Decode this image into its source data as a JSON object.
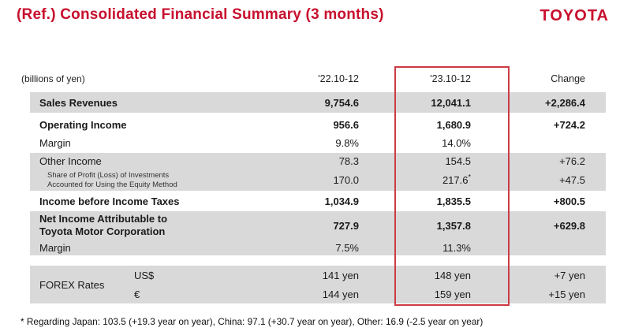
{
  "header": {
    "title": "(Ref.) Consolidated Financial Summary (3 months)",
    "logo": "TOYOTA"
  },
  "table": {
    "unit_label": "(billions of yen)",
    "columns": [
      "'22.10-12",
      "'23.10-12",
      "Change"
    ],
    "rows": [
      {
        "label": "Sales Revenues",
        "v1": "9,754.6",
        "v2": "12,041.1",
        "change": "+2,286.4"
      },
      {
        "label": "Operating Income",
        "v1": "956.6",
        "v2": "1,680.9",
        "change": "+724.2"
      },
      {
        "label": "Margin",
        "v1": "9.8%",
        "v2": "14.0%",
        "change": ""
      },
      {
        "label": "Other Income",
        "v1": "78.3",
        "v2": "154.5",
        "change": "+76.2"
      },
      {
        "label_line1": "Share of Profit (Loss) of Investments",
        "label_line2": "Accounted for Using the Equity Method",
        "v1": "170.0",
        "v2": "217.6",
        "v2_note": "*",
        "change": "+47.5"
      },
      {
        "label": "Income before Income Taxes",
        "v1": "1,034.9",
        "v2": "1,835.5",
        "change": "+800.5"
      },
      {
        "label_line1": "Net Income Attributable to",
        "label_line2": "Toyota Motor Corporation",
        "v1": "727.9",
        "v2": "1,357.8",
        "change": "+629.8"
      },
      {
        "label": "Margin",
        "v1": "7.5%",
        "v2": "11.3%",
        "change": ""
      }
    ],
    "forex": {
      "label": "FOREX Rates",
      "rows": [
        {
          "currency": "US$",
          "v1": "141 yen",
          "v2": "148 yen",
          "change": "+7 yen"
        },
        {
          "currency": "€",
          "v1": "144 yen",
          "v2": "159 yen",
          "change": "+15 yen"
        }
      ]
    }
  },
  "footnote": "* Regarding Japan: 103.5 (+19.3 year on year), China: 97.1 (+30.7 year on year), Other: 16.9 (-2.5 year on year)",
  "colors": {
    "accent_red": "#C8102E",
    "highlight_border": "#CD3A45",
    "band_gray": "#D9D9D9"
  }
}
